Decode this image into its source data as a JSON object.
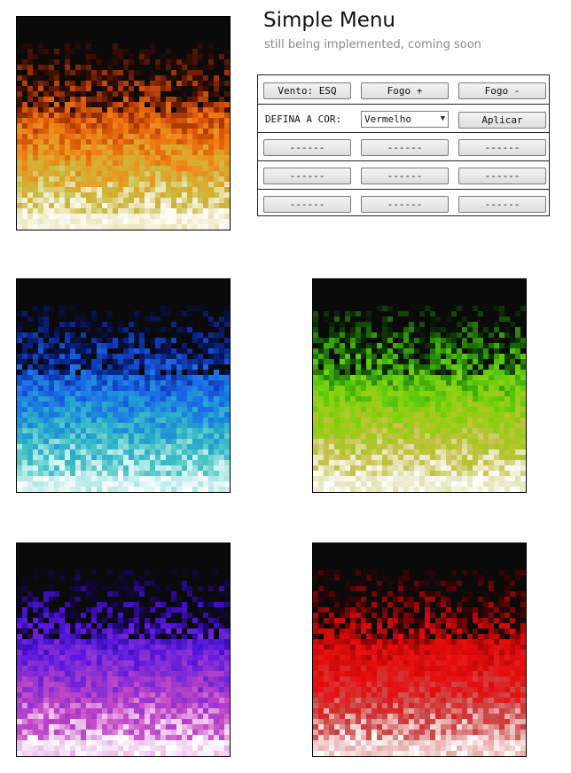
{
  "menu": {
    "title": "Simple Menu",
    "subtitle": "still being implemented, coming soon",
    "row1": {
      "wind_label": "Vento: ESQ",
      "fire_plus_label": "Fogo +",
      "fire_minus_label": "Fogo -"
    },
    "row2": {
      "color_label": "DEFINA A COR:",
      "color_value": "Vermelho",
      "apply_label": "Aplicar"
    },
    "placeholder_label": "------"
  },
  "canvases": [
    {
      "id": "fire-orange",
      "colors": [
        "#0a0a0a",
        "#3a0c02",
        "#8a2a04",
        "#d8540a",
        "#ef7a12",
        "#e3a226",
        "#c8bb40",
        "#ede7bc",
        "#ffffff"
      ]
    },
    {
      "id": "fire-blue",
      "colors": [
        "#0a0a0a",
        "#06104a",
        "#0a2fa0",
        "#1a5fe6",
        "#1d83e0",
        "#26a8cc",
        "#48c4c4",
        "#b6e8e8",
        "#ffffff"
      ]
    },
    {
      "id": "fire-green",
      "colors": [
        "#0a0a0a",
        "#0c3a04",
        "#2a8a08",
        "#55c80c",
        "#86d20e",
        "#a8c81e",
        "#c6c048",
        "#e8e6bc",
        "#ffffff"
      ]
    },
    {
      "id": "fire-purple",
      "colors": [
        "#0a0a0a",
        "#100640",
        "#3a0eb4",
        "#5a18e0",
        "#7a2ad6",
        "#a23ace",
        "#c84ac6",
        "#ecc0ec",
        "#ffffff"
      ]
    },
    {
      "id": "fire-red",
      "colors": [
        "#0a0a0a",
        "#3a0202",
        "#8a0606",
        "#d00a0a",
        "#e80c0c",
        "#dc2424",
        "#cc4a4a",
        "#ecb8b8",
        "#ffffff"
      ]
    }
  ]
}
